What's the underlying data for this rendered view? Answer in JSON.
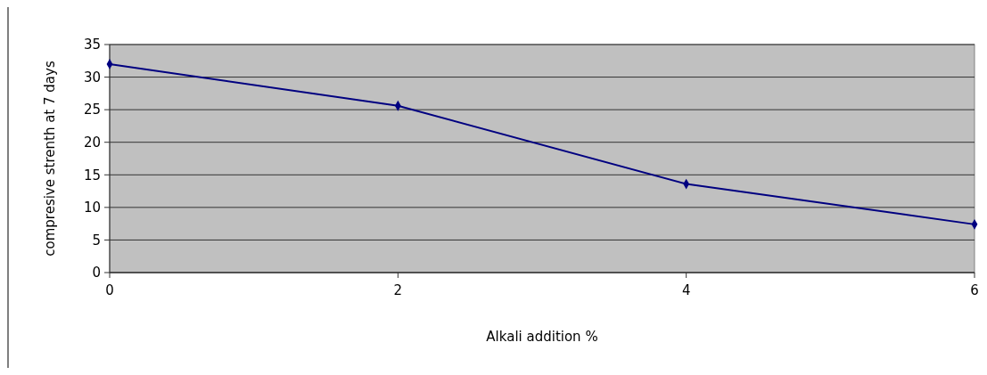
{
  "chart_data": {
    "type": "line",
    "xlabel": "Alkali addition %",
    "ylabel": "compresive strenth at 7 days",
    "x": [
      0,
      2,
      4,
      6
    ],
    "series": [
      {
        "color": "#000080",
        "values": [
          32,
          25.6,
          13.6,
          7.4
        ]
      }
    ],
    "xlim": [
      0,
      6
    ],
    "xticks": [
      0,
      2,
      4,
      6
    ],
    "ylim": [
      0,
      35
    ],
    "yticks": [
      0,
      5,
      10,
      15,
      20,
      25,
      30,
      35
    ],
    "grid": "y",
    "marker": "diamond",
    "line_style": "solid"
  }
}
